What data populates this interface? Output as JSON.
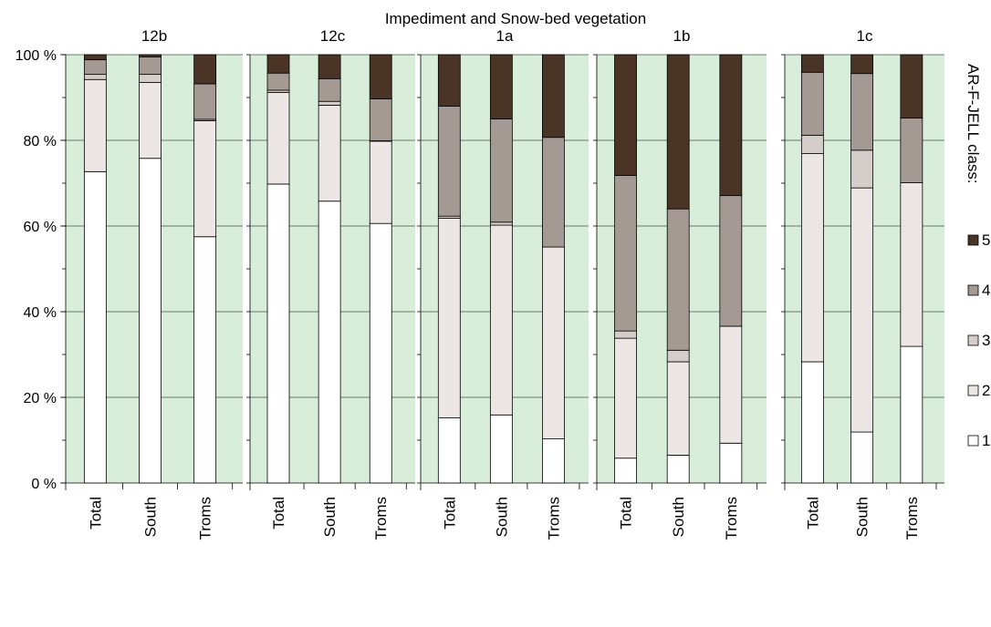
{
  "chart_data": {
    "type": "bar",
    "stacked": true,
    "normalized": true,
    "title": "Impediment and Snow-bed vegetation",
    "ylim": [
      0,
      100
    ],
    "y_ticks": [
      "0 %",
      "20 %",
      "40 %",
      "60 %",
      "80 %",
      "100 %"
    ],
    "grid": true,
    "plot_background": "#d8eedb",
    "categories": [
      "Total",
      "South",
      "Troms"
    ],
    "legend": {
      "title": "AR-F-JELL class:",
      "position": "right",
      "entries": [
        {
          "label": "5",
          "color": "#4a3426"
        },
        {
          "label": "4",
          "color": "#a49a93"
        },
        {
          "label": "3",
          "color": "#d5cdc9"
        },
        {
          "label": "2",
          "color": "#ece6e4"
        },
        {
          "label": "1",
          "color": "#ffffff"
        }
      ]
    },
    "panels": [
      {
        "title": "12b",
        "series": [
          {
            "name": "1",
            "values": [
              72.7,
              75.8,
              57.5
            ]
          },
          {
            "name": "2",
            "values": [
              21.5,
              17.7,
              27.1
            ]
          },
          {
            "name": "3",
            "values": [
              1.2,
              1.9,
              0.3
            ]
          },
          {
            "name": "4",
            "values": [
              3.4,
              4.1,
              8.3
            ]
          },
          {
            "name": "5",
            "values": [
              1.2,
              0.5,
              6.8
            ]
          }
        ]
      },
      {
        "title": "12c",
        "series": [
          {
            "name": "1",
            "values": [
              69.8,
              65.8,
              60.6
            ]
          },
          {
            "name": "2",
            "values": [
              21.4,
              22.4,
              19.2
            ]
          },
          {
            "name": "3",
            "values": [
              0.5,
              0.9,
              0.1
            ]
          },
          {
            "name": "4",
            "values": [
              4.0,
              5.3,
              9.8
            ]
          },
          {
            "name": "5",
            "values": [
              4.3,
              5.6,
              10.3
            ]
          }
        ]
      },
      {
        "title": "1a",
        "series": [
          {
            "name": "1",
            "values": [
              15.2,
              15.9,
              10.3
            ]
          },
          {
            "name": "2",
            "values": [
              46.6,
              44.3,
              44.8
            ]
          },
          {
            "name": "3",
            "values": [
              0.5,
              0.7,
              0.0
            ]
          },
          {
            "name": "4",
            "values": [
              25.7,
              24.1,
              25.6
            ]
          },
          {
            "name": "5",
            "values": [
              12.0,
              15.0,
              19.3
            ]
          }
        ]
      },
      {
        "title": "1b",
        "series": [
          {
            "name": "1",
            "values": [
              5.8,
              6.5,
              9.3
            ]
          },
          {
            "name": "2",
            "values": [
              28.0,
              21.8,
              27.3
            ]
          },
          {
            "name": "3",
            "values": [
              1.7,
              2.7,
              0.0
            ]
          },
          {
            "name": "4",
            "values": [
              36.3,
              33.0,
              30.5
            ]
          },
          {
            "name": "5",
            "values": [
              28.2,
              36.0,
              32.9
            ]
          }
        ]
      },
      {
        "title": "1c",
        "series": [
          {
            "name": "1",
            "values": [
              28.3,
              11.9,
              31.9
            ]
          },
          {
            "name": "2",
            "values": [
              48.6,
              57.0,
              38.2
            ]
          },
          {
            "name": "3",
            "values": [
              4.3,
              8.8,
              0.0
            ]
          },
          {
            "name": "4",
            "values": [
              14.7,
              17.9,
              15.1
            ]
          },
          {
            "name": "5",
            "values": [
              4.1,
              4.4,
              14.8
            ]
          }
        ]
      }
    ]
  }
}
